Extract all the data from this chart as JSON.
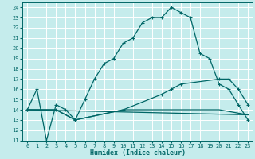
{
  "xlabel": "Humidex (Indice chaleur)",
  "xlim": [
    -0.5,
    23.5
  ],
  "ylim": [
    11,
    24.5
  ],
  "yticks": [
    11,
    12,
    13,
    14,
    15,
    16,
    17,
    18,
    19,
    20,
    21,
    22,
    23,
    24
  ],
  "xticks": [
    0,
    1,
    2,
    3,
    4,
    5,
    6,
    7,
    8,
    9,
    10,
    11,
    12,
    13,
    14,
    15,
    16,
    17,
    18,
    19,
    20,
    21,
    22,
    23
  ],
  "bg_color": "#c5ecec",
  "line_color": "#006666",
  "grid_color": "#ffffff",
  "line1_x": [
    0,
    1,
    2,
    3,
    4,
    5,
    6,
    7,
    8,
    9,
    10,
    11,
    12,
    13,
    14,
    15,
    16,
    17,
    18,
    19,
    20,
    21,
    22,
    23
  ],
  "line1_y": [
    14,
    16,
    11,
    14.5,
    14,
    13,
    15,
    17,
    18.5,
    19,
    20.5,
    21,
    22.5,
    23,
    23,
    24,
    23.5,
    23,
    19.5,
    19,
    16.5,
    16,
    14.5,
    13
  ],
  "line2_x": [
    0,
    23
  ],
  "line2_y": [
    14,
    13.5
  ],
  "line3_x": [
    0,
    3,
    5,
    10,
    15,
    20,
    23
  ],
  "line3_y": [
    14,
    14,
    13,
    14,
    14,
    14,
    13.5
  ],
  "line4_x": [
    0,
    3,
    5,
    10,
    14,
    15,
    16,
    20,
    21,
    22,
    23
  ],
  "line4_y": [
    14,
    14,
    13,
    14,
    15.5,
    16,
    16.5,
    17,
    17,
    16,
    14.5
  ]
}
